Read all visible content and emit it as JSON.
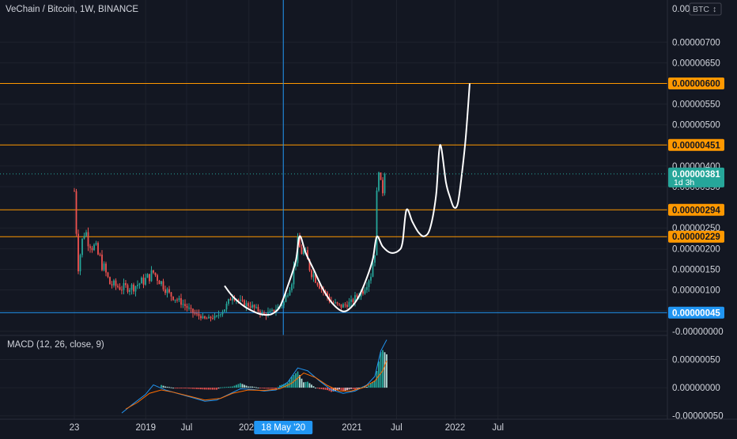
{
  "header": {
    "symbol_title": "VeChain / Bitcoin, 1W, BINANCE",
    "currency_label": "BTC",
    "currency_arrow": "↕",
    "top_price_fragment": "0.00"
  },
  "indicator": {
    "label": "MACD (12, 26, close, 9)"
  },
  "colors": {
    "background": "#131722",
    "grid": "#1e222d",
    "up": "#26a69a",
    "down": "#ef5350",
    "macd_line": "#2196f3",
    "signal_line": "#ff6d00",
    "level_line": "#ff9800",
    "blue_line": "#2196f3",
    "pattern": "#ffffff",
    "text": "#d1d4dc"
  },
  "chart_data": [
    {
      "type": "candlestick",
      "title": "VeChain / Bitcoin, 1W, BINANCE",
      "ylim": [
        -1e-07,
        8.02e-06
      ],
      "y_ticks": [
        "0.00000700",
        "0.00000650",
        "0.00000550",
        "0.00000500",
        "0.00000400",
        "0.00000350",
        "0.00000250",
        "0.00000200",
        "0.00000150",
        "0.00000100",
        "0.00000050",
        "-0.00000000"
      ],
      "x_ticks": [
        "23",
        "2019",
        "Jul",
        "2020",
        "18 May '20",
        "2021",
        "Jul",
        "2022",
        "Jul"
      ],
      "x_ticks_t": [
        0,
        36.1,
        56.8,
        88.3,
        105.7,
        140.4,
        163.0,
        192.6,
        214.3
      ],
      "crosshair": {
        "t": 105.7,
        "label": "18 May '20"
      },
      "current_price": {
        "value": 3.81e-06,
        "label": "0.00000381",
        "countdown": "1d 3h"
      },
      "horizontal_levels": [
        {
          "value": 6e-06,
          "label": "0.00000600",
          "color": "orange"
        },
        {
          "value": 4.51e-06,
          "label": "0.00000451",
          "color": "orange"
        },
        {
          "value": 2.94e-06,
          "label": "0.00000294",
          "color": "orange"
        },
        {
          "value": 2.29e-06,
          "label": "0.00000229",
          "color": "orange"
        },
        {
          "value": 4.5e-07,
          "label": "0.00000045",
          "color": "blue"
        }
      ],
      "anchors": [
        {
          "t": 0,
          "p": 3.4e-06
        },
        {
          "t": 2,
          "p": 1.6e-06
        },
        {
          "t": 5,
          "p": 2.45e-06
        },
        {
          "t": 8,
          "p": 2.2e-06
        },
        {
          "t": 13,
          "p": 1.75e-06
        },
        {
          "t": 18,
          "p": 1.15e-06
        },
        {
          "t": 24,
          "p": 1.05e-06
        },
        {
          "t": 30,
          "p": 1.08e-06
        },
        {
          "t": 36,
          "p": 1.25e-06
        },
        {
          "t": 40,
          "p": 1.42e-06
        },
        {
          "t": 44,
          "p": 1.18e-06
        },
        {
          "t": 48,
          "p": 9e-07
        },
        {
          "t": 54,
          "p": 7e-07
        },
        {
          "t": 60,
          "p": 4.5e-07
        },
        {
          "t": 66,
          "p": 3e-07
        },
        {
          "t": 72,
          "p": 3.5e-07
        },
        {
          "t": 76,
          "p": 5.5e-07
        },
        {
          "t": 80,
          "p": 8.8e-07
        },
        {
          "t": 84,
          "p": 7e-07
        },
        {
          "t": 90,
          "p": 6e-07
        },
        {
          "t": 96,
          "p": 4e-07
        },
        {
          "t": 101,
          "p": 5e-07
        },
        {
          "t": 106,
          "p": 7e-07
        },
        {
          "t": 110,
          "p": 1.25e-06
        },
        {
          "t": 113,
          "p": 2.05e-06
        },
        {
          "t": 116,
          "p": 1.9e-06
        },
        {
          "t": 120,
          "p": 1.45e-06
        },
        {
          "t": 125,
          "p": 1.05e-06
        },
        {
          "t": 130,
          "p": 7e-07
        },
        {
          "t": 135,
          "p": 6e-07
        },
        {
          "t": 140,
          "p": 7e-07
        },
        {
          "t": 146,
          "p": 1e-06
        },
        {
          "t": 150,
          "p": 1.4e-06
        },
        {
          "t": 152,
          "p": 2e-06
        },
        {
          "t": 154,
          "p": 4.3e-06
        },
        {
          "t": 155,
          "p": 3.3e-06
        },
        {
          "t": 157,
          "p": 3.81e-06
        }
      ],
      "pattern_points": [
        [
          76,
          1.1e-06
        ],
        [
          80,
          8.5e-07
        ],
        [
          86,
          6e-07
        ],
        [
          92,
          4.5e-07
        ],
        [
          96,
          4e-07
        ],
        [
          100,
          4.2e-07
        ],
        [
          104,
          6e-07
        ],
        [
          108,
          1.1e-06
        ],
        [
          112,
          1.7e-06
        ],
        [
          114,
          2.3e-06
        ],
        [
          117,
          1.9e-06
        ],
        [
          121,
          1.5e-06
        ],
        [
          126,
          1e-06
        ],
        [
          131,
          6.5e-07
        ],
        [
          136,
          4.8e-07
        ],
        [
          140,
          5.8e-07
        ],
        [
          144,
          8.5e-07
        ],
        [
          148,
          1.3e-06
        ],
        [
          151,
          1.75e-06
        ],
        [
          153,
          2.29e-06
        ],
        [
          156,
          2.05e-06
        ],
        [
          160,
          1.9e-06
        ],
        [
          164,
          1.95e-06
        ],
        [
          166,
          2.15e-06
        ],
        [
          168,
          2.94e-06
        ],
        [
          171,
          2.65e-06
        ],
        [
          174,
          2.4e-06
        ],
        [
          177,
          2.3e-06
        ],
        [
          180,
          2.5e-06
        ],
        [
          183,
          3.3e-06
        ],
        [
          185,
          4.51e-06
        ],
        [
          188,
          3.6e-06
        ],
        [
          190,
          3.25e-06
        ],
        [
          192,
          3e-06
        ],
        [
          194,
          3.1e-06
        ],
        [
          196,
          3.8e-06
        ],
        [
          198,
          4.7e-06
        ],
        [
          200,
          6e-06
        ]
      ]
    },
    {
      "type": "macd",
      "title": "MACD (12, 26, close, 9)",
      "params": {
        "fast": 12,
        "slow": 26,
        "source": "close",
        "signal": 9
      },
      "ylim": [
        -5.6e-07,
        9e-07
      ],
      "y_ticks": [
        "0.00000050",
        "0.00000000",
        "-0.00000050"
      ],
      "macd_line": [
        [
          24,
          -4.5e-07
        ],
        [
          30,
          -2.8e-07
        ],
        [
          36,
          -1.2e-07
        ],
        [
          40,
          5e-08
        ],
        [
          46,
          -4e-08
        ],
        [
          52,
          -1e-07
        ],
        [
          60,
          -1.8e-07
        ],
        [
          66,
          -2.4e-07
        ],
        [
          72,
          -2.2e-07
        ],
        [
          78,
          -1.2e-07
        ],
        [
          84,
          -2e-08
        ],
        [
          90,
          -3e-08
        ],
        [
          96,
          -6e-08
        ],
        [
          102,
          -4e-08
        ],
        [
          108,
          1e-07
        ],
        [
          113,
          3.5e-07
        ],
        [
          118,
          3e-07
        ],
        [
          124,
          1.2e-07
        ],
        [
          130,
          -4e-08
        ],
        [
          136,
          -1e-07
        ],
        [
          142,
          -6e-08
        ],
        [
          148,
          5e-08
        ],
        [
          152,
          2e-07
        ],
        [
          155,
          6.5e-07
        ],
        [
          158,
          8.5e-07
        ]
      ],
      "signal_line": [
        [
          26,
          -3.8e-07
        ],
        [
          32,
          -2.6e-07
        ],
        [
          38,
          -1e-07
        ],
        [
          44,
          -4e-08
        ],
        [
          50,
          -8e-08
        ],
        [
          58,
          -1.5e-07
        ],
        [
          66,
          -2.2e-07
        ],
        [
          74,
          -1.9e-07
        ],
        [
          80,
          -1e-07
        ],
        [
          88,
          -4e-08
        ],
        [
          96,
          -5e-08
        ],
        [
          104,
          -2e-08
        ],
        [
          110,
          8e-08
        ],
        [
          116,
          2.6e-07
        ],
        [
          122,
          1.8e-07
        ],
        [
          128,
          4e-08
        ],
        [
          134,
          -6e-08
        ],
        [
          140,
          -6e-08
        ],
        [
          146,
          0.0
        ],
        [
          152,
          1.2e-07
        ],
        [
          156,
          3e-07
        ],
        [
          158,
          4.8e-07
        ]
      ]
    }
  ]
}
